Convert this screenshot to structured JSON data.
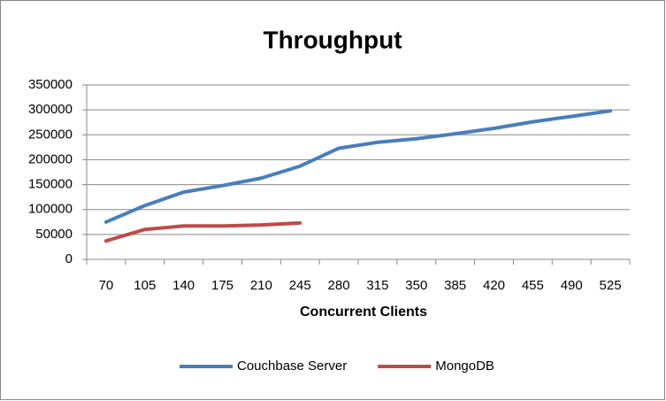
{
  "chart_data": {
    "type": "line",
    "title": "Throughput",
    "x_label": "Concurrent Clients",
    "categories": [
      "70",
      "105",
      "140",
      "175",
      "210",
      "245",
      "280",
      "315",
      "350",
      "385",
      "420",
      "455",
      "490",
      "525"
    ],
    "series": [
      {
        "name": "Couchbase Server",
        "color": "#4a7ebb",
        "values": [
          75000,
          108000,
          135000,
          148000,
          163000,
          187000,
          223000,
          235000,
          242000,
          252000,
          263000,
          276000,
          287000,
          298000
        ]
      },
      {
        "name": "MongoDB",
        "color": "#be4b48",
        "values": [
          37000,
          60000,
          67000,
          67000,
          69000,
          73000,
          null,
          null,
          null,
          null,
          null,
          null,
          null,
          null
        ]
      }
    ],
    "ylim": [
      0,
      350000
    ],
    "yticks": [
      0,
      50000,
      100000,
      150000,
      200000,
      250000,
      300000,
      350000
    ],
    "grid": true,
    "legend": "bottom"
  }
}
